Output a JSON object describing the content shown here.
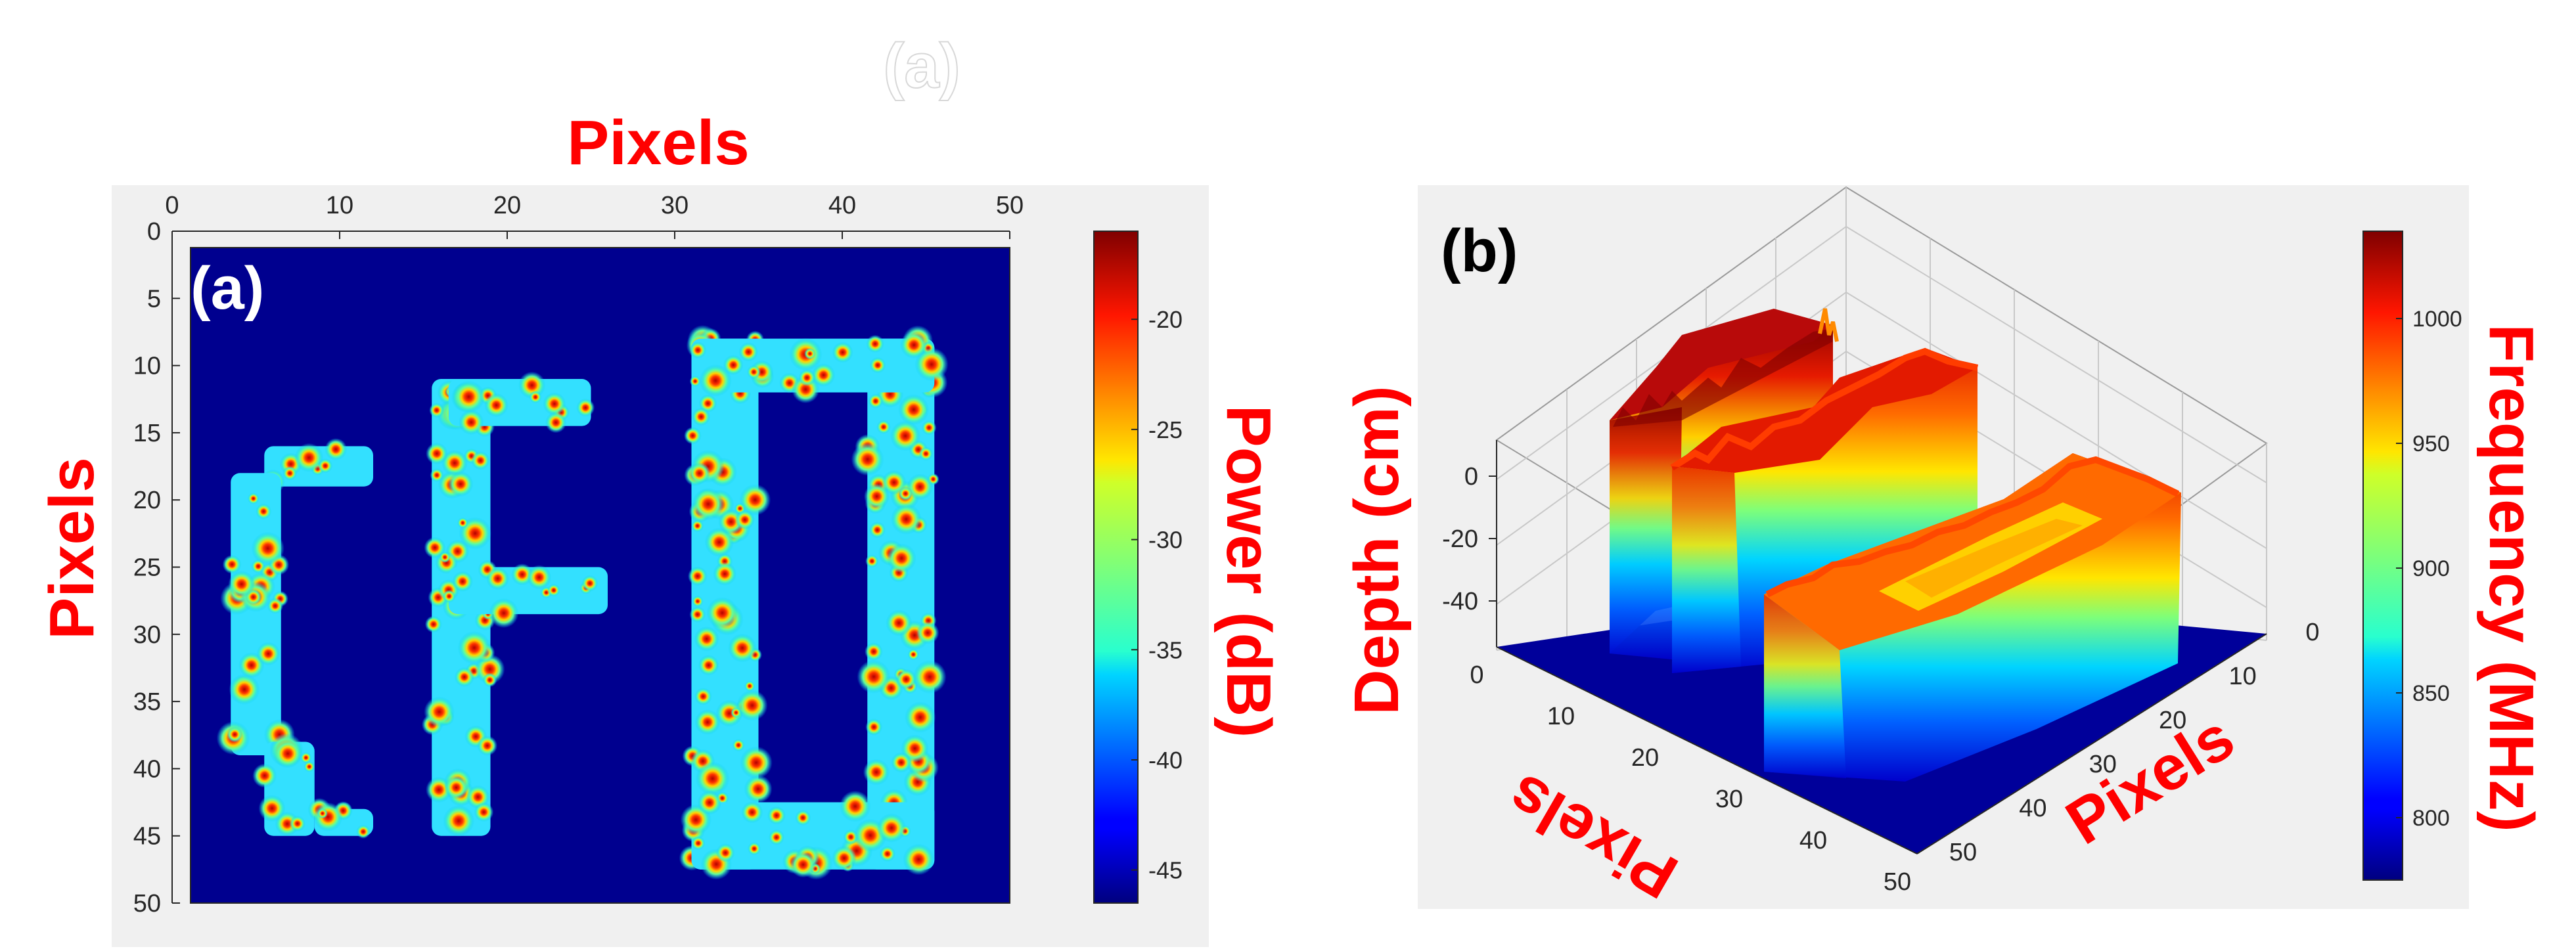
{
  "faint_title": "(a)",
  "chart_data": [
    {
      "type": "heatmap",
      "panel_label": "(a)",
      "title": "Pixels",
      "ylabel": "Pixels",
      "colorbar_label": "Power (dB)",
      "xlim": [
        0,
        50
      ],
      "ylim": [
        50,
        0
      ],
      "xticks": [
        0,
        10,
        20,
        30,
        40,
        50
      ],
      "yticks": [
        0,
        5,
        10,
        15,
        20,
        25,
        30,
        35,
        40,
        45,
        50
      ],
      "colorbar_range": [
        -46.5,
        -16
      ],
      "colorbar_ticks": [
        -20,
        -25,
        -30,
        -35,
        -40,
        -45
      ],
      "colormap": "jet",
      "background_value": -46,
      "letters": [
        {
          "letter": "C",
          "x_range": [
            3.5,
            12
          ],
          "y_range": [
            16,
            45
          ]
        },
        {
          "letter": "F",
          "x_range": [
            15.5,
            26
          ],
          "y_range": [
            11,
            45
          ]
        },
        {
          "letter": "D",
          "x_range": [
            31,
            45.5
          ],
          "y_range": [
            8,
            47.5
          ]
        }
      ]
    },
    {
      "type": "surface",
      "panel_label": "(b)",
      "zlabel": "Depth (cm)",
      "xlabel": "Pixels",
      "ylabel": "Pixels",
      "colorbar_label": "Frequency (MHz)",
      "x_ticks": [
        0,
        10,
        20,
        30,
        40,
        50
      ],
      "y_ticks": [
        0,
        10,
        20,
        30,
        40,
        50
      ],
      "z_ticks": [
        0,
        -20,
        -40
      ],
      "colorbar_range": [
        775,
        1035
      ],
      "colorbar_ticks": [
        1000,
        950,
        900,
        850,
        800
      ],
      "colormap": "jet",
      "letters": [
        {
          "letter": "C",
          "top_depth_cm": 10
        },
        {
          "letter": "F",
          "top_depth_cm": 5
        },
        {
          "letter": "D",
          "top_depth_cm": 0
        }
      ]
    }
  ]
}
